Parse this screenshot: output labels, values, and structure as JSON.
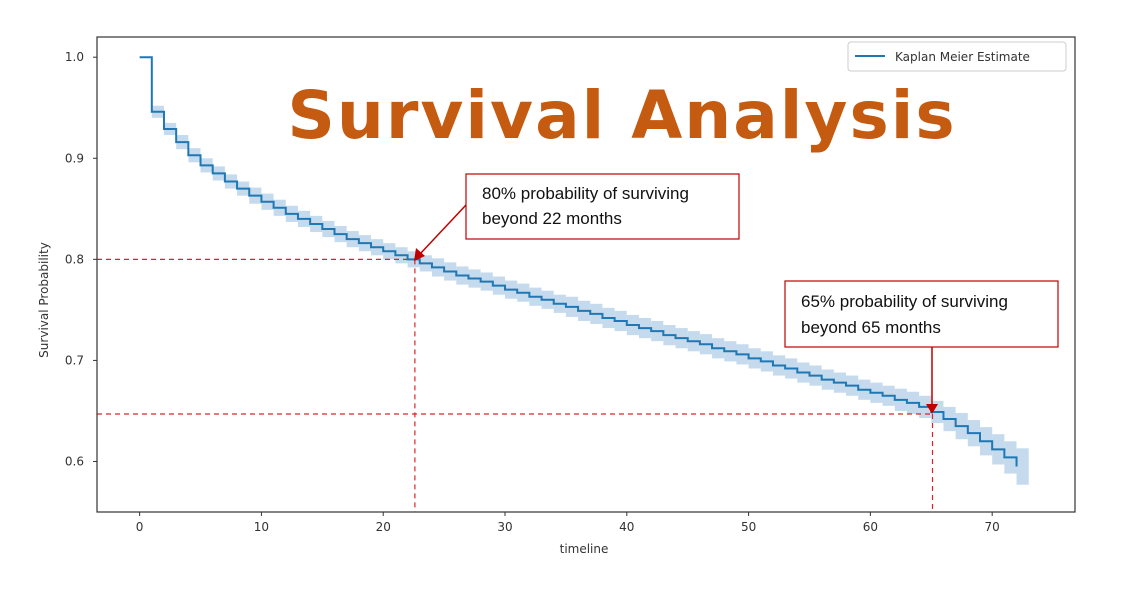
{
  "chart_data": {
    "type": "line",
    "title": "Survival Analysis",
    "xlabel": "timeline",
    "ylabel": "Survival Probability",
    "xlim": [
      -3.5,
      76.8
    ],
    "ylim": [
      0.55,
      1.02
    ],
    "xticks": [
      0,
      10,
      20,
      30,
      40,
      50,
      60,
      70
    ],
    "xtick_labels": [
      "0",
      "10",
      "20",
      "30",
      "40",
      "50",
      "60",
      "70"
    ],
    "yticks": [
      0.6,
      0.7,
      0.8,
      0.9,
      1.0
    ],
    "ytick_labels": [
      "0.6",
      "0.7",
      "0.8",
      "0.9",
      "1.0"
    ],
    "grid": false,
    "legend": {
      "placement": "top-right",
      "entries": [
        "Kaplan Meier Estimate"
      ]
    },
    "series": [
      {
        "name": "Kaplan Meier Estimate",
        "step": true,
        "color": "#1f77b4",
        "ci_color": "#a6c8e4",
        "x": [
          0,
          1,
          2,
          3,
          4,
          5,
          6,
          7,
          8,
          9,
          10,
          11,
          12,
          13,
          14,
          15,
          16,
          17,
          18,
          19,
          20,
          21,
          22,
          23,
          24,
          25,
          26,
          27,
          28,
          29,
          30,
          31,
          32,
          33,
          34,
          35,
          36,
          37,
          38,
          39,
          40,
          41,
          42,
          43,
          44,
          45,
          46,
          47,
          48,
          49,
          50,
          51,
          52,
          53,
          54,
          55,
          56,
          57,
          58,
          59,
          60,
          61,
          62,
          63,
          64,
          65,
          66,
          67,
          68,
          69,
          70,
          71,
          72
        ],
        "values": [
          1.0,
          0.946,
          0.929,
          0.916,
          0.903,
          0.893,
          0.885,
          0.877,
          0.87,
          0.863,
          0.857,
          0.851,
          0.845,
          0.84,
          0.835,
          0.83,
          0.825,
          0.82,
          0.816,
          0.812,
          0.808,
          0.804,
          0.8,
          0.796,
          0.792,
          0.788,
          0.784,
          0.781,
          0.778,
          0.774,
          0.77,
          0.767,
          0.763,
          0.76,
          0.756,
          0.753,
          0.749,
          0.746,
          0.742,
          0.739,
          0.735,
          0.732,
          0.729,
          0.725,
          0.722,
          0.719,
          0.716,
          0.712,
          0.709,
          0.706,
          0.702,
          0.699,
          0.695,
          0.692,
          0.688,
          0.685,
          0.681,
          0.678,
          0.675,
          0.671,
          0.668,
          0.665,
          0.661,
          0.658,
          0.654,
          0.649,
          0.642,
          0.635,
          0.628,
          0.62,
          0.612,
          0.604,
          0.595
        ],
        "ci_halfwidth": [
          0,
          0.006,
          0.006,
          0.007,
          0.007,
          0.007,
          0.007,
          0.007,
          0.007,
          0.008,
          0.008,
          0.008,
          0.008,
          0.008,
          0.008,
          0.008,
          0.008,
          0.008,
          0.008,
          0.008,
          0.008,
          0.008,
          0.008,
          0.008,
          0.009,
          0.009,
          0.009,
          0.009,
          0.009,
          0.009,
          0.009,
          0.009,
          0.009,
          0.009,
          0.009,
          0.01,
          0.01,
          0.01,
          0.01,
          0.01,
          0.01,
          0.01,
          0.01,
          0.01,
          0.01,
          0.01,
          0.01,
          0.01,
          0.01,
          0.01,
          0.01,
          0.01,
          0.01,
          0.01,
          0.01,
          0.01,
          0.01,
          0.01,
          0.01,
          0.01,
          0.01,
          0.01,
          0.011,
          0.011,
          0.011,
          0.011,
          0.012,
          0.013,
          0.013,
          0.014,
          0.015,
          0.016,
          0.018
        ]
      }
    ],
    "annotations": [
      {
        "text_line1": "80% probability of surviving",
        "text_line2": "beyond 22 months",
        "x": 22.6,
        "y": 0.8
      },
      {
        "text_line1": "65% probability of surviving",
        "text_line2": "beyond 65 months",
        "x": 65.1,
        "y": 0.647
      }
    ]
  }
}
